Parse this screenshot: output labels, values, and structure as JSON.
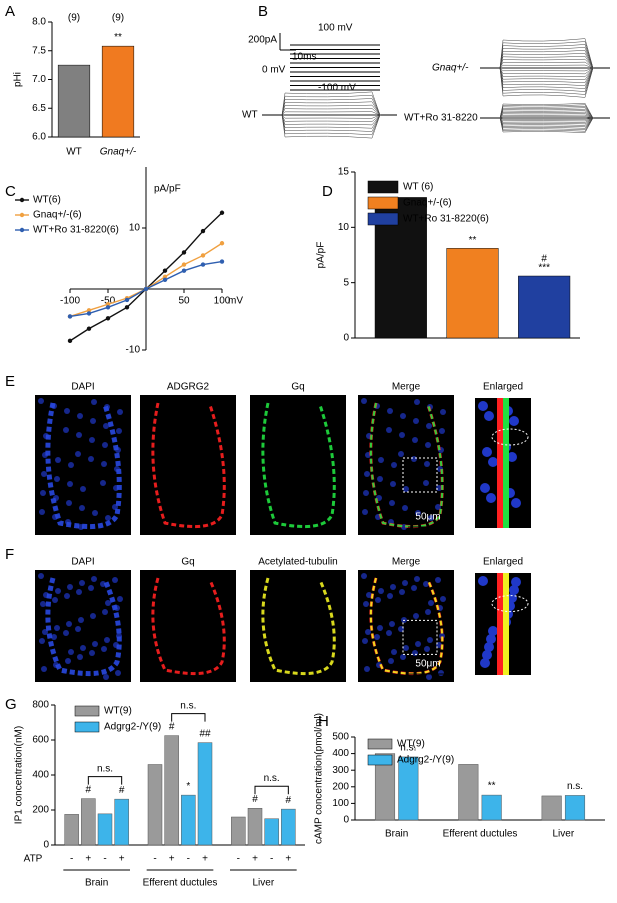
{
  "panel_letters": [
    "A",
    "B",
    "C",
    "D",
    "E",
    "F",
    "G",
    "H"
  ],
  "traces": {
    "scale_current": "200pA",
    "scale_time": "10ms",
    "voltages": [
      "100 mV",
      "0 mV",
      "-100 mV"
    ],
    "labels": [
      "WT",
      "Gnaq+/-",
      "WT+Ro 31-8220"
    ]
  },
  "micrographs": [
    {
      "labels": [
        "DAPI",
        "ADGRG2",
        "Gq",
        "Merge",
        "Enlarged"
      ],
      "scale_bar": "50μm"
    },
    {
      "labels": [
        "DAPI",
        "Gq",
        "Acetylated-tubulin",
        "Merge",
        "Enlarged"
      ],
      "scale_bar": "50μm"
    }
  ],
  "chart_data": [
    {
      "type": "bar",
      "ylabel": "pHi",
      "categories": [
        "WT",
        "Gnaq+/-"
      ],
      "values": [
        7.25,
        7.58
      ],
      "colors": [
        "#808080",
        "#f07a20"
      ],
      "value_annotations": [
        "(9)",
        "(9)"
      ],
      "significance": [
        null,
        "**"
      ],
      "ylim": [
        6.0,
        8.0
      ],
      "yticks": [
        {
          "value": 6,
          "label": "6.0"
        },
        {
          "value": 6.5,
          "label": "6.5"
        },
        {
          "value": 7,
          "label": "7.0"
        },
        {
          "value": 7.5,
          "label": "7.5"
        },
        {
          "value": 8,
          "label": "8.0"
        }
      ]
    },
    {
      "type": "line",
      "xlabel": "mV",
      "ylabel": "pA/pF",
      "x": [
        -100,
        -75,
        -50,
        -25,
        0,
        25,
        50,
        75,
        100
      ],
      "series": [
        {
          "name": "WT(6)",
          "color": "#111111",
          "values": [
            -8.5,
            -6.5,
            -4.8,
            -3,
            0,
            3,
            6,
            9.5,
            12.5
          ]
        },
        {
          "name": "Gnaq+/-(6)",
          "color": "#f0a040",
          "values": [
            -4.5,
            -3.5,
            -2.5,
            -1.5,
            0,
            2,
            4,
            5.5,
            7.5
          ]
        },
        {
          "name": "WT+Ro 31-8220(6)",
          "color": "#2f5fb0",
          "values": [
            -4.5,
            -4,
            -3,
            -1.8,
            0,
            1.5,
            3,
            4,
            4.5
          ]
        }
      ],
      "xlim": [
        -100,
        100
      ],
      "ylim": [
        -10,
        20
      ],
      "xticks": [
        -100,
        -50,
        50,
        100
      ],
      "yticks": [
        -10,
        10
      ],
      "legend": "upper left"
    },
    {
      "type": "bar",
      "ylabel": "pA/pF",
      "categories": [
        null
      ],
      "series": [
        {
          "name": "WT  (6)",
          "color": "#111111",
          "values": [
            12.7
          ]
        },
        {
          "name": "Gnaq+/-(6)",
          "color": "#f08020",
          "values": [
            8.1
          ],
          "markers": [
            "**"
          ]
        },
        {
          "name": "WT+Ro 31-8220(6)",
          "color": "#2040a0",
          "values": [
            5.6
          ],
          "markers": [
            "#",
            "***"
          ]
        }
      ],
      "ylim": [
        0,
        15
      ],
      "yticks": [
        0,
        5,
        10,
        15
      ],
      "legend": "upper left"
    },
    {
      "type": "grouped_bar",
      "ylabel": "IP1 concentration(nM)",
      "categories": [
        "Brain",
        "Efferent ductules",
        "Liver"
      ],
      "condition_label": "ATP",
      "conditions": [
        "-",
        "+"
      ],
      "series": [
        {
          "name": "WT(9)",
          "color": "#9a9a9a",
          "values": [
            [
              175,
              265
            ],
            [
              460,
              625
            ],
            [
              160,
              210
            ]
          ],
          "markers": [
            [
              null,
              "#"
            ],
            [
              null,
              "#"
            ],
            [
              null,
              "#"
            ]
          ]
        },
        {
          "name": "Adgrg2-/Y(9)",
          "color": "#3db4ea",
          "values": [
            [
              178,
              262
            ],
            [
              285,
              585
            ],
            [
              150,
              205
            ]
          ],
          "markers": [
            [
              null,
              "#"
            ],
            [
              "*",
              "##"
            ],
            [
              null,
              "#"
            ]
          ]
        }
      ],
      "comparisons": [
        "n.s.",
        "n.s.",
        "n.s."
      ],
      "ylim": [
        0,
        800
      ],
      "yticks": [
        0,
        200,
        400,
        600,
        800
      ],
      "legend": "upper left"
    },
    {
      "type": "grouped_bar",
      "ylabel": "cAMP concentration(pmol/ml)",
      "categories": [
        "Brain",
        "Efferent ductules",
        "Liver"
      ],
      "series": [
        {
          "name": "WT(9)",
          "color": "#9a9a9a",
          "values": [
            400,
            335,
            145
          ]
        },
        {
          "name": "Adgrg2-/Y(9)",
          "color": "#3db4ea",
          "values": [
            380,
            150,
            148
          ],
          "markers": [
            "n.s.",
            "**",
            "n.s."
          ]
        }
      ],
      "ylim": [
        0,
        500
      ],
      "yticks": [
        0,
        100,
        200,
        300,
        400,
        500
      ],
      "legend": "upper left"
    }
  ]
}
